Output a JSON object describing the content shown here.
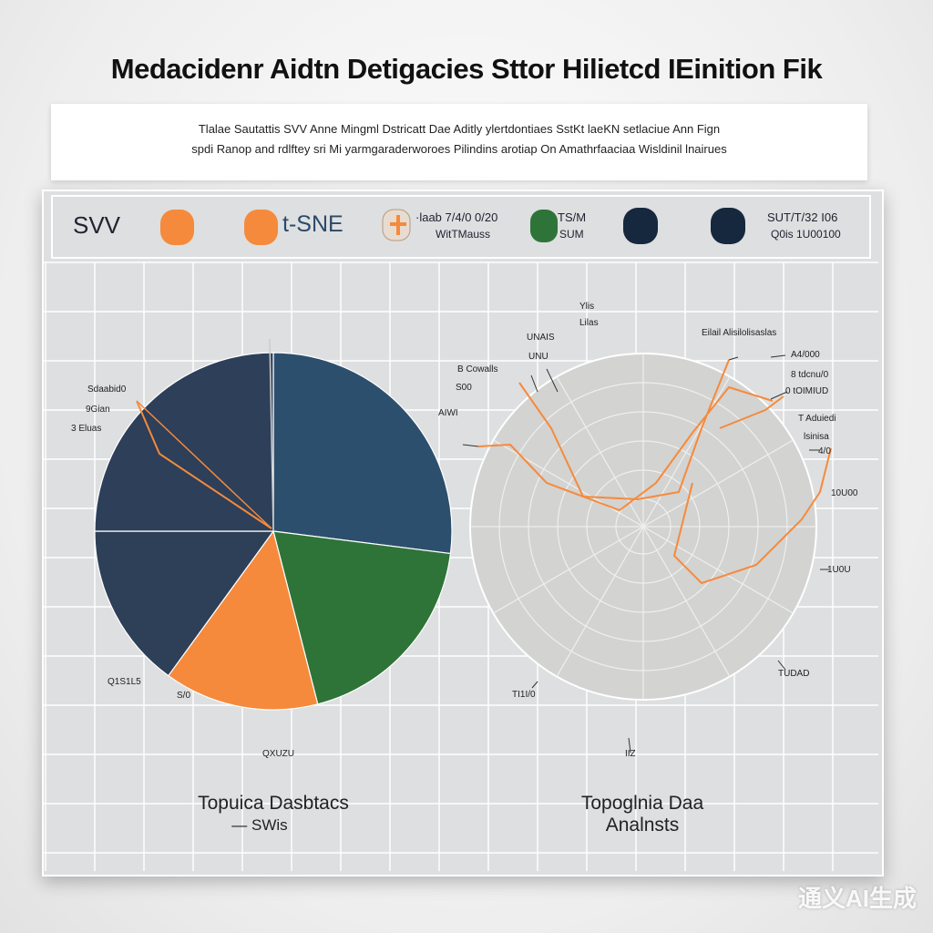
{
  "title": "Medacidenr Aidtn Detigacies Sttor Hilietcd IEinition Fik",
  "subtitle": {
    "line1": "Tlalae Sautattis SVV Anne Mingml Dstricatt Dae Aditly ylertdontiaes SstKt laeKN setlaciue Ann Fign",
    "line2": "spdi Ranop and rdlftey sri Mi yarmgaraderworoes Pilindins arotiap On Amathrfaaciaa Wisldinil lnairues"
  },
  "legend": {
    "label_svv": "SVV",
    "label_tsne": "t-SNE",
    "label_mid_1": "·laab 7/4/0 0/20",
    "label_mid_2": "WitTMauss",
    "label_green_1": "TS/M",
    "label_green_2": "SUM",
    "label_right_1": "SUT/T/32 I06",
    "label_right_2": "Q0is 1U00100",
    "colors": {
      "orange": "#f58a3c",
      "green": "#2e7438",
      "navy": "#16283d"
    }
  },
  "chart_data": [
    {
      "type": "pie",
      "title": "Topuica Dasbtacs",
      "subtitle": "— SWis",
      "slices": [
        {
          "value": 27,
          "color": "#2d4f6e"
        },
        {
          "value": 19,
          "color": "#2e7438"
        },
        {
          "value": 14,
          "color": "#f58a3c"
        },
        {
          "value": 15,
          "color": "#2e3f58"
        },
        {
          "value": 25,
          "color": "#2d3f59"
        }
      ],
      "annotations": [
        "Sdaabid0",
        "9Gian",
        "3 Eluas",
        "Q1S1L5",
        "S/0",
        "QXUZU"
      ]
    },
    {
      "type": "area",
      "title": "Topoglnia Daa",
      "subtitle": "Analnsts",
      "annotations": [
        "Ylis",
        "Lilas",
        "UNAIS",
        "UNU",
        "B Cowalls",
        "S00",
        "AIWI",
        "Eilail Alisilolisaslas",
        "A4/000",
        "8 tdcnu/0",
        "0 tOIMIUD",
        "T Aduiedi",
        "lsinisa",
        "4/0",
        "10U00",
        "1U0U",
        "TUDAD",
        "TI1I/0",
        "IIZ"
      ]
    }
  ],
  "watermark": "通义AI生成"
}
